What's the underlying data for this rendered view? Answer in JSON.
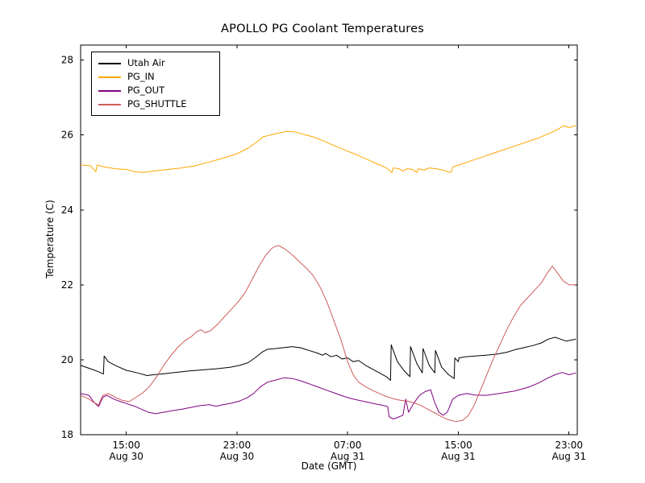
{
  "chart_data": {
    "type": "line",
    "title": "APOLLO PG Coolant Temperatures",
    "xlabel": "Date (GMT)",
    "ylabel": "Temperature (C)",
    "x_unit_note": "x = hours elapsed since Aug 30 12:00 GMT",
    "xlim": [
      -0.3,
      35.6
    ],
    "ylim": [
      18,
      28.4
    ],
    "grid": false,
    "legend_position": "upper left",
    "y_ticks": [
      18,
      20,
      22,
      24,
      26,
      28
    ],
    "x_ticks": [
      {
        "value": 3,
        "time": "15:00",
        "date": "Aug 30"
      },
      {
        "value": 11,
        "time": "23:00",
        "date": "Aug 30"
      },
      {
        "value": 19,
        "time": "07:00",
        "date": "Aug 31"
      },
      {
        "value": 27,
        "time": "15:00",
        "date": "Aug 31"
      },
      {
        "value": 35,
        "time": "23:00",
        "date": "Aug 31"
      }
    ],
    "series": [
      {
        "name": "Utah Air",
        "color": "#000000",
        "points": [
          [
            -0.3,
            19.85
          ],
          [
            0.5,
            19.75
          ],
          [
            1.0,
            19.68
          ],
          [
            1.35,
            19.62
          ],
          [
            1.4,
            20.1
          ],
          [
            1.7,
            19.95
          ],
          [
            2.2,
            19.85
          ],
          [
            3.0,
            19.72
          ],
          [
            3.8,
            19.65
          ],
          [
            4.5,
            19.58
          ],
          [
            5.0,
            19.6
          ],
          [
            5.8,
            19.63
          ],
          [
            6.5,
            19.66
          ],
          [
            7.5,
            19.7
          ],
          [
            8.5,
            19.73
          ],
          [
            9.5,
            19.76
          ],
          [
            10.5,
            19.8
          ],
          [
            11.2,
            19.85
          ],
          [
            11.8,
            19.92
          ],
          [
            12.3,
            20.05
          ],
          [
            12.8,
            20.2
          ],
          [
            13.2,
            20.28
          ],
          [
            13.8,
            20.3
          ],
          [
            14.3,
            20.32
          ],
          [
            15.0,
            20.35
          ],
          [
            15.6,
            20.32
          ],
          [
            16.2,
            20.25
          ],
          [
            16.8,
            20.18
          ],
          [
            17.2,
            20.12
          ],
          [
            17.4,
            20.17
          ],
          [
            17.8,
            20.08
          ],
          [
            18.2,
            20.12
          ],
          [
            18.6,
            20.02
          ],
          [
            19.0,
            20.05
          ],
          [
            19.4,
            19.95
          ],
          [
            19.8,
            19.98
          ],
          [
            20.3,
            19.85
          ],
          [
            20.8,
            19.75
          ],
          [
            21.3,
            19.65
          ],
          [
            21.8,
            19.55
          ],
          [
            22.1,
            19.45
          ],
          [
            22.15,
            20.4
          ],
          [
            22.6,
            19.95
          ],
          [
            23.1,
            19.7
          ],
          [
            23.5,
            19.55
          ],
          [
            23.55,
            20.35
          ],
          [
            24.0,
            19.9
          ],
          [
            24.4,
            19.65
          ],
          [
            24.45,
            20.3
          ],
          [
            24.9,
            19.85
          ],
          [
            25.3,
            19.65
          ],
          [
            25.35,
            20.25
          ],
          [
            25.8,
            19.8
          ],
          [
            26.3,
            19.6
          ],
          [
            26.7,
            19.5
          ],
          [
            26.75,
            20.05
          ],
          [
            27.0,
            19.95
          ],
          [
            27.05,
            20.05
          ],
          [
            27.5,
            20.08
          ],
          [
            28.2,
            20.1
          ],
          [
            29.0,
            20.12
          ],
          [
            29.8,
            20.15
          ],
          [
            30.5,
            20.2
          ],
          [
            31.2,
            20.28
          ],
          [
            31.8,
            20.33
          ],
          [
            32.4,
            20.38
          ],
          [
            33.0,
            20.45
          ],
          [
            33.5,
            20.55
          ],
          [
            34.0,
            20.6
          ],
          [
            34.4,
            20.55
          ],
          [
            34.8,
            20.5
          ],
          [
            35.5,
            20.55
          ]
        ]
      },
      {
        "name": "PG_IN",
        "color": "#ffa500",
        "points": [
          [
            -0.3,
            25.2
          ],
          [
            0.4,
            25.18
          ],
          [
            0.8,
            25.02
          ],
          [
            0.9,
            25.2
          ],
          [
            1.4,
            25.15
          ],
          [
            2.2,
            25.1
          ],
          [
            3.0,
            25.08
          ],
          [
            3.6,
            25.02
          ],
          [
            4.2,
            25.0
          ],
          [
            5.0,
            25.04
          ],
          [
            6.0,
            25.08
          ],
          [
            7.0,
            25.12
          ],
          [
            8.0,
            25.18
          ],
          [
            9.0,
            25.28
          ],
          [
            10.0,
            25.38
          ],
          [
            11.0,
            25.5
          ],
          [
            11.8,
            25.65
          ],
          [
            12.4,
            25.8
          ],
          [
            12.9,
            25.95
          ],
          [
            13.4,
            26.0
          ],
          [
            14.0,
            26.05
          ],
          [
            14.6,
            26.1
          ],
          [
            15.2,
            26.08
          ],
          [
            15.8,
            26.02
          ],
          [
            16.5,
            25.95
          ],
          [
            17.2,
            25.85
          ],
          [
            18.0,
            25.72
          ],
          [
            18.8,
            25.6
          ],
          [
            19.6,
            25.48
          ],
          [
            20.4,
            25.35
          ],
          [
            21.2,
            25.22
          ],
          [
            21.8,
            25.12
          ],
          [
            22.2,
            25.0
          ],
          [
            22.3,
            25.12
          ],
          [
            22.7,
            25.1
          ],
          [
            23.0,
            25.04
          ],
          [
            23.3,
            25.1
          ],
          [
            23.7,
            25.08
          ],
          [
            24.0,
            25.0
          ],
          [
            24.1,
            25.1
          ],
          [
            24.5,
            25.06
          ],
          [
            24.9,
            25.12
          ],
          [
            25.4,
            25.1
          ],
          [
            25.9,
            25.06
          ],
          [
            26.4,
            25.0
          ],
          [
            26.5,
            25.02
          ],
          [
            26.6,
            25.15
          ],
          [
            27.2,
            25.22
          ],
          [
            28.0,
            25.32
          ],
          [
            28.8,
            25.42
          ],
          [
            29.6,
            25.52
          ],
          [
            30.4,
            25.62
          ],
          [
            31.2,
            25.72
          ],
          [
            32.0,
            25.82
          ],
          [
            32.8,
            25.92
          ],
          [
            33.6,
            26.05
          ],
          [
            34.2,
            26.15
          ],
          [
            34.6,
            26.25
          ],
          [
            35.0,
            26.2
          ],
          [
            35.5,
            26.25
          ]
        ]
      },
      {
        "name": "PG_OUT",
        "color": "#800080",
        "points": [
          [
            -0.3,
            19.1
          ],
          [
            0.3,
            19.05
          ],
          [
            0.7,
            18.85
          ],
          [
            1.0,
            18.75
          ],
          [
            1.3,
            19.0
          ],
          [
            1.6,
            19.05
          ],
          [
            2.1,
            18.95
          ],
          [
            2.6,
            18.88
          ],
          [
            3.1,
            18.82
          ],
          [
            3.6,
            18.76
          ],
          [
            4.1,
            18.68
          ],
          [
            4.6,
            18.6
          ],
          [
            5.1,
            18.56
          ],
          [
            5.7,
            18.6
          ],
          [
            6.3,
            18.64
          ],
          [
            7.0,
            18.68
          ],
          [
            7.7,
            18.73
          ],
          [
            8.4,
            18.78
          ],
          [
            9.0,
            18.8
          ],
          [
            9.5,
            18.76
          ],
          [
            10.0,
            18.8
          ],
          [
            10.6,
            18.84
          ],
          [
            11.2,
            18.9
          ],
          [
            11.7,
            18.98
          ],
          [
            12.2,
            19.1
          ],
          [
            12.7,
            19.28
          ],
          [
            13.2,
            19.4
          ],
          [
            13.8,
            19.46
          ],
          [
            14.4,
            19.52
          ],
          [
            15.0,
            19.5
          ],
          [
            15.6,
            19.44
          ],
          [
            16.2,
            19.36
          ],
          [
            16.8,
            19.28
          ],
          [
            17.4,
            19.2
          ],
          [
            18.0,
            19.12
          ],
          [
            18.6,
            19.04
          ],
          [
            19.2,
            18.97
          ],
          [
            19.8,
            18.92
          ],
          [
            20.4,
            18.87
          ],
          [
            21.0,
            18.82
          ],
          [
            21.6,
            18.78
          ],
          [
            21.9,
            18.75
          ],
          [
            22.0,
            18.48
          ],
          [
            22.3,
            18.42
          ],
          [
            22.6,
            18.46
          ],
          [
            23.0,
            18.52
          ],
          [
            23.2,
            18.95
          ],
          [
            23.4,
            18.6
          ],
          [
            23.8,
            18.85
          ],
          [
            24.2,
            19.05
          ],
          [
            24.6,
            19.15
          ],
          [
            25.0,
            19.2
          ],
          [
            25.3,
            18.85
          ],
          [
            25.6,
            18.6
          ],
          [
            25.9,
            18.52
          ],
          [
            26.2,
            18.6
          ],
          [
            26.6,
            18.95
          ],
          [
            27.0,
            19.05
          ],
          [
            27.6,
            19.1
          ],
          [
            28.2,
            19.06
          ],
          [
            29.0,
            19.05
          ],
          [
            30.0,
            19.1
          ],
          [
            31.0,
            19.16
          ],
          [
            32.0,
            19.26
          ],
          [
            32.8,
            19.38
          ],
          [
            33.4,
            19.5
          ],
          [
            34.0,
            19.6
          ],
          [
            34.5,
            19.66
          ],
          [
            35.0,
            19.6
          ],
          [
            35.5,
            19.65
          ]
        ]
      },
      {
        "name": "PG_SHUTTLE",
        "color": "#cd5c5c",
        "points": [
          [
            -0.3,
            19.05
          ],
          [
            0.3,
            18.95
          ],
          [
            0.7,
            18.85
          ],
          [
            1.0,
            18.8
          ],
          [
            1.3,
            19.05
          ],
          [
            1.7,
            19.1
          ],
          [
            2.2,
            19.0
          ],
          [
            2.7,
            18.92
          ],
          [
            3.2,
            18.88
          ],
          [
            3.7,
            19.0
          ],
          [
            4.2,
            19.12
          ],
          [
            4.7,
            19.3
          ],
          [
            5.2,
            19.55
          ],
          [
            5.7,
            19.85
          ],
          [
            6.2,
            20.1
          ],
          [
            6.7,
            20.32
          ],
          [
            7.2,
            20.5
          ],
          [
            7.7,
            20.62
          ],
          [
            8.1,
            20.75
          ],
          [
            8.4,
            20.8
          ],
          [
            8.7,
            20.72
          ],
          [
            9.1,
            20.78
          ],
          [
            9.6,
            20.95
          ],
          [
            10.1,
            21.15
          ],
          [
            10.6,
            21.35
          ],
          [
            11.1,
            21.55
          ],
          [
            11.6,
            21.8
          ],
          [
            12.1,
            22.15
          ],
          [
            12.6,
            22.5
          ],
          [
            13.1,
            22.8
          ],
          [
            13.6,
            23.0
          ],
          [
            14.0,
            23.05
          ],
          [
            14.5,
            22.95
          ],
          [
            15.0,
            22.8
          ],
          [
            15.5,
            22.62
          ],
          [
            16.0,
            22.45
          ],
          [
            16.5,
            22.25
          ],
          [
            17.0,
            21.95
          ],
          [
            17.5,
            21.55
          ],
          [
            18.0,
            21.05
          ],
          [
            18.5,
            20.55
          ],
          [
            19.0,
            19.95
          ],
          [
            19.4,
            19.6
          ],
          [
            19.8,
            19.4
          ],
          [
            20.3,
            19.28
          ],
          [
            20.8,
            19.18
          ],
          [
            21.3,
            19.1
          ],
          [
            21.8,
            19.02
          ],
          [
            22.3,
            18.96
          ],
          [
            22.8,
            18.92
          ],
          [
            23.3,
            18.9
          ],
          [
            23.8,
            18.85
          ],
          [
            24.3,
            18.78
          ],
          [
            24.8,
            18.68
          ],
          [
            25.3,
            18.58
          ],
          [
            25.8,
            18.48
          ],
          [
            26.3,
            18.4
          ],
          [
            26.8,
            18.35
          ],
          [
            27.3,
            18.38
          ],
          [
            27.7,
            18.5
          ],
          [
            28.1,
            18.75
          ],
          [
            28.5,
            19.1
          ],
          [
            29.0,
            19.55
          ],
          [
            29.5,
            20.0
          ],
          [
            30.0,
            20.4
          ],
          [
            30.5,
            20.8
          ],
          [
            31.0,
            21.15
          ],
          [
            31.5,
            21.45
          ],
          [
            32.0,
            21.65
          ],
          [
            32.5,
            21.85
          ],
          [
            33.0,
            22.05
          ],
          [
            33.4,
            22.3
          ],
          [
            33.8,
            22.5
          ],
          [
            34.2,
            22.3
          ],
          [
            34.6,
            22.1
          ],
          [
            35.0,
            22.0
          ],
          [
            35.5,
            22.0
          ]
        ]
      }
    ],
    "colors": {
      "background": "#ffffff",
      "axis": "#000000"
    }
  }
}
